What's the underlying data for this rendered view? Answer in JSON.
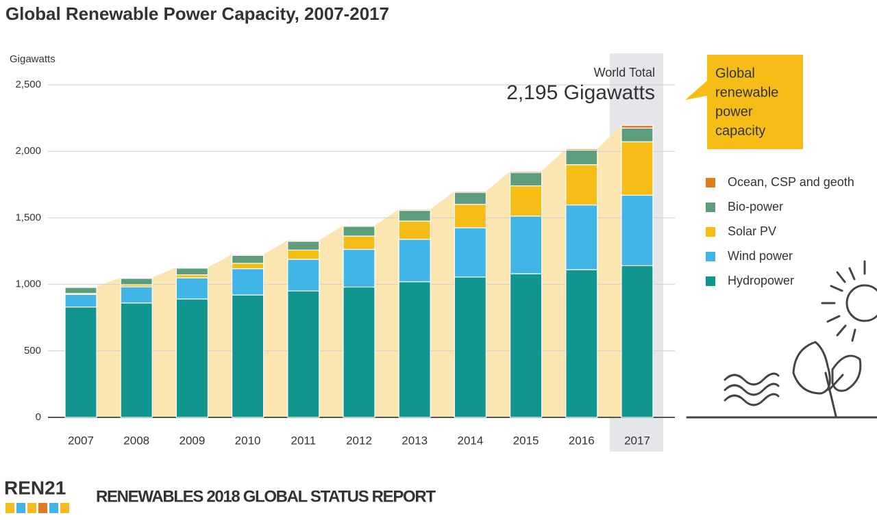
{
  "chart_data": {
    "type": "bar",
    "stacked": true,
    "title": "Global Renewable Power Capacity, 2007-2017",
    "y_label": "Gigawatts",
    "categories": [
      "2007",
      "2008",
      "2009",
      "2010",
      "2011",
      "2012",
      "2013",
      "2014",
      "2015",
      "2016",
      "2017"
    ],
    "series": [
      {
        "name": "Hydropower",
        "color": "#10968f",
        "values": [
          830,
          860,
          890,
          920,
          950,
          980,
          1020,
          1055,
          1080,
          1110,
          1140
        ]
      },
      {
        "name": "Wind power",
        "color": "#41b6e6",
        "values": [
          94,
          121,
          159,
          198,
          238,
          283,
          318,
          370,
          433,
          487,
          530
        ]
      },
      {
        "name": "Solar PV",
        "color": "#f6bd16",
        "values": [
          8,
          16,
          23,
          40,
          70,
          100,
          138,
          177,
          228,
          303,
          402
        ]
      },
      {
        "name": "Bio-power",
        "color": "#5e9c7e",
        "values": [
          45,
          48,
          50,
          60,
          66,
          73,
          80,
          90,
          100,
          109,
          103
        ]
      },
      {
        "name": "Ocean, CSP and geoth",
        "color": "#e07b20",
        "values": [
          6,
          6,
          6,
          7,
          7,
          7,
          8,
          8,
          9,
          10,
          20
        ]
      }
    ],
    "ylim": [
      0,
      2500
    ],
    "yticks": [
      0,
      500,
      {
        "value": 1000,
        "label": "1,000"
      },
      {
        "value": 1500,
        "label": "1,500"
      },
      {
        "value": 2000,
        "label": "2,000"
      },
      {
        "value": 2500,
        "label": "2,500"
      }
    ],
    "grid": true,
    "annotation": {
      "label": "World Total",
      "text": "2,195 Gigawatts"
    },
    "callout": [
      "Global",
      "renewable",
      "power",
      "capacity"
    ]
  },
  "footer": {
    "logo": "REN21",
    "report": "RENEWABLES 2018 GLOBAL STATUS REPORT"
  }
}
